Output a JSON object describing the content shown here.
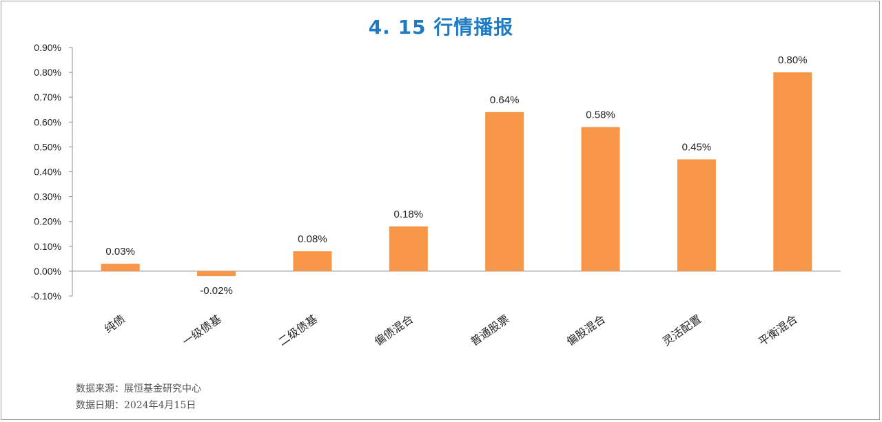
{
  "chart_data": {
    "type": "bar",
    "title": "4. 15 行情播报",
    "categories": [
      "纯债",
      "一级债基",
      "二级债基",
      "偏债混合",
      "普通股票",
      "偏股混合",
      "灵活配置",
      "平衡混合"
    ],
    "values": [
      0.03,
      -0.02,
      0.08,
      0.18,
      0.64,
      0.58,
      0.45,
      0.8
    ],
    "data_labels": [
      "0.03%",
      "-0.02%",
      "0.08%",
      "0.18%",
      "0.64%",
      "0.58%",
      "0.45%",
      "0.80%"
    ],
    "ylim": [
      -0.1,
      0.9
    ],
    "yticks": [
      -0.1,
      0.0,
      0.1,
      0.2,
      0.3,
      0.4,
      0.5,
      0.6,
      0.7,
      0.8,
      0.9
    ],
    "ytick_labels": [
      "-0.10%",
      "0.00%",
      "0.10%",
      "0.20%",
      "0.30%",
      "0.40%",
      "0.50%",
      "0.60%",
      "0.70%",
      "0.80%",
      "0.90%"
    ],
    "bar_color": "#f79646",
    "grid": false,
    "legend": "none"
  },
  "footer": {
    "source": "数据来源：展恒基金研究中心",
    "date": "数据日期：2024年4月15日"
  }
}
